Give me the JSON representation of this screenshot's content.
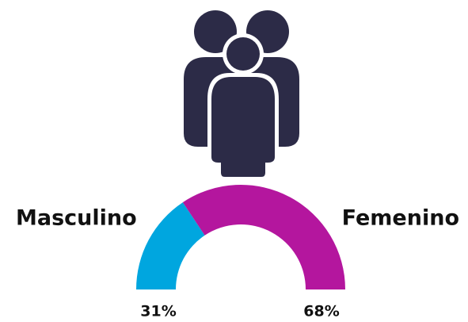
{
  "chart_data": {
    "type": "pie",
    "half": true,
    "categories": [
      "Masculino",
      "Femenino"
    ],
    "values": [
      31,
      68
    ],
    "value_labels": [
      "31%",
      "68%"
    ],
    "colors": [
      "#00a6df",
      "#b4169e"
    ]
  }
}
